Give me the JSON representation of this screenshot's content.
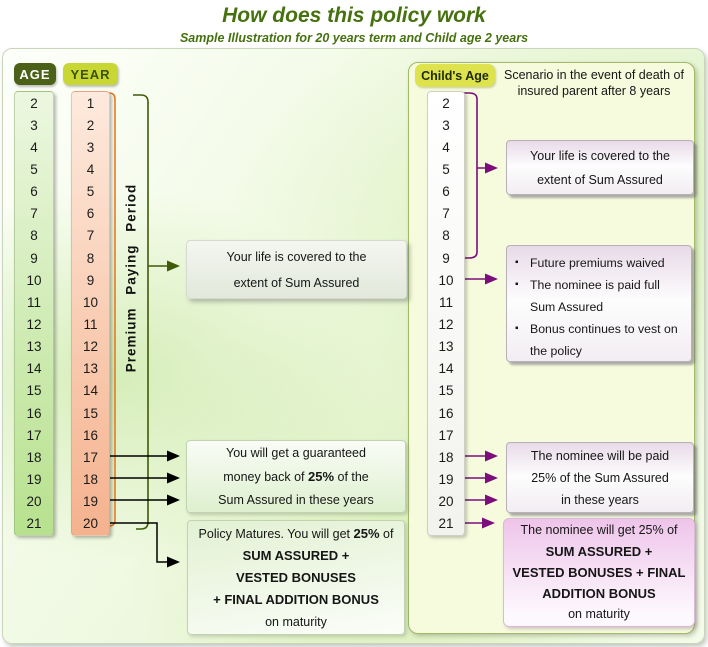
{
  "title": "How does this policy work",
  "subtitle": "Sample Illustration for 20 years term and Child age 2 years",
  "left": {
    "age_header": "AGE",
    "year_header": "YEAR",
    "premium_period_label": "Premium Paying Period",
    "ages": [
      "2",
      "3",
      "4",
      "5",
      "6",
      "7",
      "8",
      "9",
      "10",
      "11",
      "12",
      "13",
      "14",
      "15",
      "16",
      "17",
      "18",
      "19",
      "20",
      "21"
    ],
    "years": [
      "1",
      "2",
      "3",
      "4",
      "5",
      "6",
      "7",
      "8",
      "9",
      "10",
      "11",
      "12",
      "13",
      "14",
      "15",
      "16",
      "17",
      "18",
      "19",
      "20"
    ],
    "box_life_cover": {
      "line1": "Your life is covered to the",
      "line2": "extent of Sum Assured"
    },
    "box_money_back": {
      "line1": "You will get a guaranteed",
      "line2_pre": "money back of ",
      "line2_bold": "25%",
      "line2_post": " of the",
      "line3": "Sum Assured in these years"
    },
    "box_maturity": {
      "line1_pre": "Policy Matures. You will get ",
      "line1_bold": "25%",
      "line1_post": " of",
      "line2": "SUM ASSURED +",
      "line3": "VESTED BONUSES",
      "line4": "+ FINAL ADDITION BONUS",
      "line5": "on maturity"
    }
  },
  "right": {
    "header": "Child's Age",
    "scenario_heading_line1": "Scenario in the event of death of",
    "scenario_heading_line2": "insured parent after 8 years",
    "ages": [
      "2",
      "3",
      "4",
      "5",
      "6",
      "7",
      "8",
      "9",
      "10",
      "11",
      "12",
      "13",
      "14",
      "15",
      "16",
      "17",
      "18",
      "19",
      "20",
      "21"
    ],
    "box_life_cover": {
      "line1": "Your life is covered to the",
      "line2": "extent of Sum Assured"
    },
    "box_death_benefits": {
      "bullet_char": "▪",
      "item1": "Future premiums waived",
      "item2": "The nominee is paid full Sum Assured",
      "item3": "Bonus continues to vest on the policy"
    },
    "box_nominee_money_back": {
      "line1": "The nominee will be paid",
      "line2": "25% of the Sum Assured",
      "line3": "in these years"
    },
    "box_nominee_maturity": {
      "line1": "The nominee will get 25% of",
      "line2": "SUM ASSURED +",
      "line3": "VESTED BONUSES + FINAL",
      "line4": "ADDITION BONUS",
      "line5": "on maturity"
    }
  },
  "colors": {
    "title_green": "#46710f",
    "age_tab_bg": "#4b6117",
    "year_tab_bg": "#c9d735",
    "child_tab_bg": "#dde24d",
    "age_col_top": "#ecf7e0",
    "age_col_bottom": "#b7e18e",
    "year_col_top": "#fdeadd",
    "year_col_bottom": "#f5b28e",
    "orange_bracket": "#e87c1f",
    "green_bracket": "#3f5a08",
    "purple": "#7c0e7c",
    "black": "#000000",
    "panel_border": "#c9d6bc",
    "right_panel_bg": "#f5fbdc",
    "right_panel_border": "#a3b86a",
    "pink_box_top": "#eec4ea"
  }
}
